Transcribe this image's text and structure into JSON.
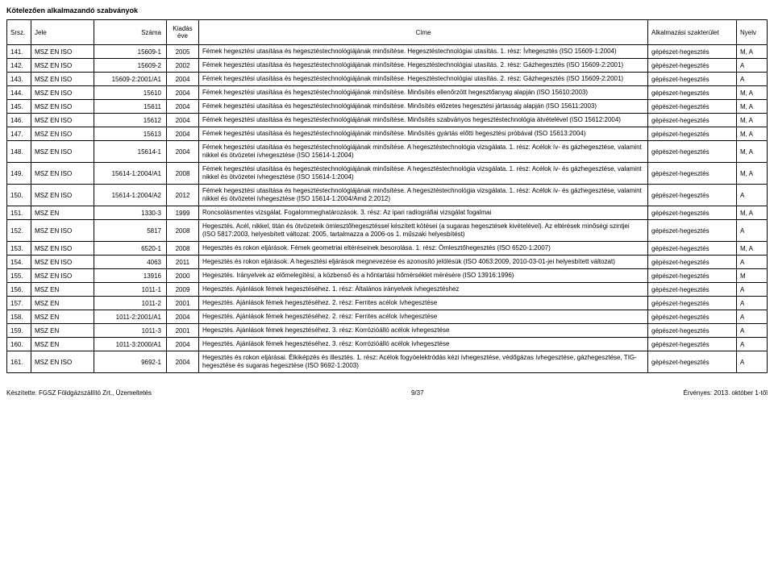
{
  "doc_title": "Kötelezően alkalmazandó szabványok",
  "header": {
    "srsz": "Srsz.",
    "jele": "Jele",
    "szama": "Száma",
    "ev": "Kiadás éve",
    "cime": "Címe",
    "szak": "Alkalmazási szakterület",
    "nyelv": "Nyelv"
  },
  "rows": [
    {
      "srsz": "141.",
      "jele": "MSZ EN ISO",
      "szama": "15609-1",
      "ev": "2005",
      "cime": "Fémek hegesztési utasítása és hegesztéstechnológiájának minősítése. Hegesztéstechnológiai utasítás. 1. rész: Ívhegesztés (ISO 15609-1:2004)",
      "szak": "gépészet-hegesztés",
      "nyelv": "M, A"
    },
    {
      "srsz": "142.",
      "jele": "MSZ EN ISO",
      "szama": "15609-2",
      "ev": "2002",
      "cime": "Fémek hegesztési utasítása és hegesztéstechnológiájának minősítése. Hegesztéstechnológiai utasítás. 2. rész: Gázhegesztés (ISO 15609-2:2001)",
      "szak": "gépészet-hegesztés",
      "nyelv": "A"
    },
    {
      "srsz": "143.",
      "jele": "MSZ EN ISO",
      "szama": "15609-2:2001/A1",
      "ev": "2004",
      "cime": "Fémek hegesztési utasítása és hegesztéstechnológiájának minősítése. Hegesztéstechnológiai utasítás. 2. rész: Gázhegesztés (ISO 15609-2:2001)",
      "szak": "gépészet-hegesztés",
      "nyelv": "A"
    },
    {
      "srsz": "144.",
      "jele": "MSZ EN ISO",
      "szama": "15610",
      "ev": "2004",
      "cime": "Fémek hegesztési utasítása és hegesztéstechnológiájának minősítése. Minősítés ellenőrzött hegesztőanyag alapján (ISO 15610:2003)",
      "szak": "gépészet-hegesztés",
      "nyelv": "M, A"
    },
    {
      "srsz": "145.",
      "jele": "MSZ EN ISO",
      "szama": "15611",
      "ev": "2004",
      "cime": "Fémek hegesztési utasítása és hegesztéstechnológiájának minősítése. Minősítés előzetes hegesztési jártasság alapján (ISO 15611:2003)",
      "szak": "gépészet-hegesztés",
      "nyelv": "M, A"
    },
    {
      "srsz": "146.",
      "jele": "MSZ EN ISO",
      "szama": "15612",
      "ev": "2004",
      "cime": "Fémek hegesztési utasítása és hegesztéstechnológiájának minősítése. Minősítés szabványos hegesztéstechnológia átvételével (ISO 15612:2004)",
      "szak": "gépészet-hegesztés",
      "nyelv": "M, A"
    },
    {
      "srsz": "147.",
      "jele": "MSZ EN ISO",
      "szama": "15613",
      "ev": "2004",
      "cime": "Fémek hegesztési utasítása és hegesztéstechnológiájának minősítése. Minősítés gyártás előtti hegesztési próbával (ISO 15613:2004)",
      "szak": "gépészet-hegesztés",
      "nyelv": "M, A"
    },
    {
      "srsz": "148.",
      "jele": "MSZ EN ISO",
      "szama": "15614-1",
      "ev": "2004",
      "cime": "Fémek hegesztési utasítása és hegesztéstechnológiájának minősítése. A hegesztéstechnológia vizsgálata. 1. rész: Acélok ív- és gázhegesztése, valamint nikkel és ötvözetei ívhegesztése (ISO 15614-1:2004)",
      "szak": "gépészet-hegesztés",
      "nyelv": "M, A"
    },
    {
      "srsz": "149.",
      "jele": "MSZ EN ISO",
      "szama": "15614-1:2004/A1",
      "ev": "2008",
      "cime": "Fémek hegesztési utasítása és hegesztéstechnológiájának minősítése. A hegesztéstechnológia vizsgálata. 1. rész: Acélok ív- és gázhegesztése, valamint nikkel és ötvözetei ívhegesztése (ISO 15614-1:2004)",
      "szak": "gépészet-hegesztés",
      "nyelv": "M, A"
    },
    {
      "srsz": "150.",
      "jele": "MSZ EN ISO",
      "szama": "15614-1:2004/A2",
      "ev": "2012",
      "cime": "Fémek hegesztési utasítása és hegesztéstechnológiájának minősítése. A hegesztéstechnológia vizsgálata. 1. rész: Acélok ív- és gázhegesztése, valamint nikkel és ötvözetei ívhegesztése (ISO 15614-1:2004/Amd 2:2012)",
      "szak": "gépészet-hegesztés",
      "nyelv": "A"
    },
    {
      "srsz": "151.",
      "jele": "MSZ EN",
      "szama": "1330-3",
      "ev": "1999",
      "cime": "Roncsolásmentes vizsgálat. Fogalommeghatározások. 3. rész: Az ipari radiográfiai vizsgálat fogalmai",
      "szak": "gépészet-hegesztés",
      "nyelv": "M, A"
    },
    {
      "srsz": "152.",
      "jele": "MSZ EN ISO",
      "szama": "5817",
      "ev": "2008",
      "cime": "Hegesztés. Acél, nikkel, titán és ötvözeteik ömlesztőhegesztéssel készített kötései (a sugaras hegesztések kivételével). Az eltérések minőségi szintjei (ISO 5817:2003, helyesbített változat: 2005, tartalmazza a 2006-os 1. műszaki helyesbítést)",
      "szak": "gépészet-hegesztés",
      "nyelv": "A"
    },
    {
      "srsz": "153.",
      "jele": "MSZ EN ISO",
      "szama": "6520-1",
      "ev": "2008",
      "cime": "Hegesztés és rokon eljárások. Fémek geometriai eltéréseinek besorolása. 1. rész: Ömlesztőhegesztés (ISO 6520-1:2007)",
      "szak": "gépészet-hegesztés",
      "nyelv": "M, A"
    },
    {
      "srsz": "154.",
      "jele": "MSZ EN ISO",
      "szama": "4063",
      "ev": "2011",
      "cime": "Hegesztés és rokon eljárások. A hegesztési eljárások megnevezése és azonosító jelölésük (ISO 4063:2009, 2010-03-01-jei helyesbített változat)",
      "szak": "gépészet-hegesztés",
      "nyelv": "A"
    },
    {
      "srsz": "155.",
      "jele": "MSZ EN ISO",
      "szama": "13916",
      "ev": "2000",
      "cime": "Hegesztés. Irányelvek az előmelegítési, a közbenső és a hőntartási hőmérséklet mérésére (ISO 13916:1996)",
      "szak": "gépészet-hegesztés",
      "nyelv": "M"
    },
    {
      "srsz": "156.",
      "jele": "MSZ EN",
      "szama": "1011-1",
      "ev": "2009",
      "cime": "Hegesztés. Ajánlások fémek hegesztéséhez. 1. rész: Általános irányelvek ívhegesztéshez",
      "szak": "gépészet-hegesztés",
      "nyelv": "A"
    },
    {
      "srsz": "157.",
      "jele": "MSZ EN",
      "szama": "1011-2",
      "ev": "2001",
      "cime": "Hegesztés. Ajánlások fémek hegesztéséhez. 2. rész: Ferrites acélok ívhegesztése",
      "szak": "gépészet-hegesztés",
      "nyelv": "A"
    },
    {
      "srsz": "158.",
      "jele": "MSZ EN",
      "szama": "1011-2:2001/A1",
      "ev": "2004",
      "cime": "Hegesztés. Ajánlások fémek hegesztéséhez. 2. rész: Ferrites acélok ívhegesztése",
      "szak": "gépészet-hegesztés",
      "nyelv": "A"
    },
    {
      "srsz": "159.",
      "jele": "MSZ EN",
      "szama": "1011-3",
      "ev": "2001",
      "cime": "Hegesztés. Ajánlások fémek hegesztéséhez. 3. rész: Korrózióálló acélok ívhegesztése",
      "szak": "gépészet-hegesztés",
      "nyelv": "A"
    },
    {
      "srsz": "160.",
      "jele": "MSZ EN",
      "szama": "1011-3:2000/A1",
      "ev": "2004",
      "cime": "Hegesztés. Ajánlások fémek hegesztéséhez. 3. rész: Korrózióálló acélok ívhegesztése",
      "szak": "gépészet-hegesztés",
      "nyelv": "A"
    },
    {
      "srsz": "161.",
      "jele": "MSZ EN ISO",
      "szama": "9692-1",
      "ev": "2004",
      "cime": "Hegesztés és rokon eljárásai. Élkiképzés és illesztés. 1. rész: Acélok fogyóelektródás kézi ívhegesztése, védőgázas ívhegesztése, gázhegesztése, TIG-hegesztése és sugaras hegesztése (ISO 9692-1:2003)",
      "szak": "gépészet-hegesztés",
      "nyelv": "A"
    }
  ],
  "footer": {
    "left": "Készítette: FGSZ Földgázszállító Zrt., Üzemeltetés",
    "center": "9/37",
    "right": "Érvényes: 2013. október 1-től"
  }
}
